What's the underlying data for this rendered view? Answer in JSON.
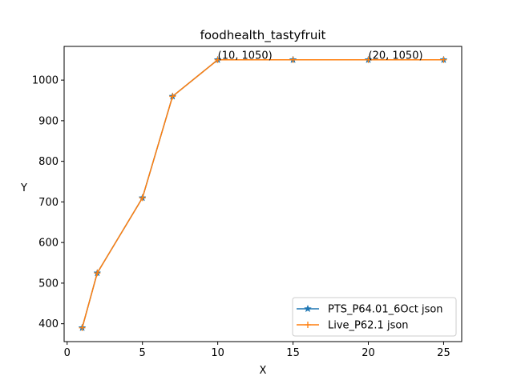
{
  "chart_data": {
    "type": "line",
    "title": "foodhealth_tastyfruit",
    "xlabel": "X",
    "ylabel": "Y",
    "xlim": [
      -0.2,
      26.2
    ],
    "ylim": [
      356,
      1083
    ],
    "xticks": [
      0,
      5,
      10,
      15,
      20,
      25
    ],
    "yticks": [
      400,
      500,
      600,
      700,
      800,
      900,
      1000
    ],
    "grid": false,
    "legend_position": "lower-right",
    "series": [
      {
        "name": "PTS_P64.01_6Oct json",
        "color": "#1f77b4",
        "marker": "star",
        "x": [
          1,
          2,
          5,
          7,
          10,
          15,
          20,
          25
        ],
        "y": [
          390,
          525,
          710,
          960,
          1050,
          1050,
          1050,
          1050
        ]
      },
      {
        "name": "Live_P62.1 json",
        "color": "#ff7f0e",
        "marker": "plus",
        "x": [
          1,
          2,
          5,
          7,
          10,
          15,
          20,
          25
        ],
        "y": [
          390,
          525,
          710,
          960,
          1050,
          1050,
          1050,
          1050
        ]
      }
    ],
    "annotations": [
      {
        "x": 10,
        "y": 1050,
        "text": "(10, 1050)"
      },
      {
        "x": 20,
        "y": 1050,
        "text": "(20, 1050)"
      }
    ]
  }
}
